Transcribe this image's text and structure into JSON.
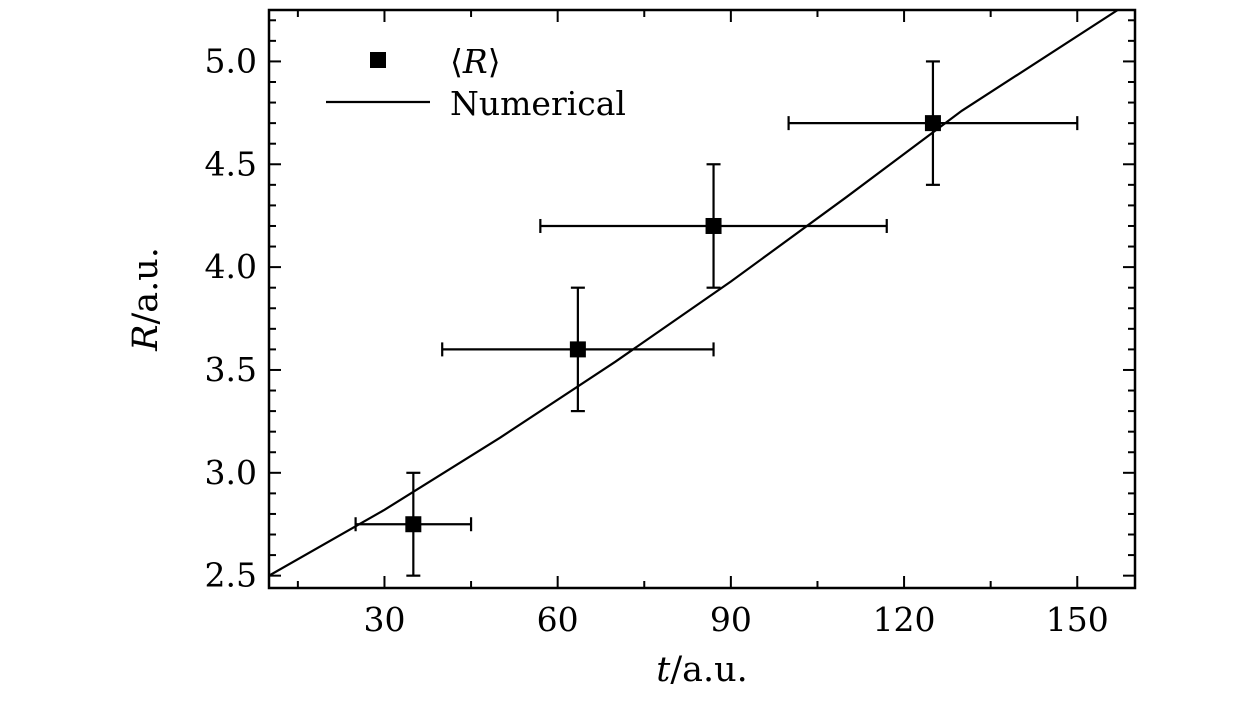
{
  "chart_data": {
    "type": "scatter",
    "title": "",
    "xlabel": {
      "symbol": "t",
      "unit": "/a.u."
    },
    "ylabel": {
      "symbol": "R",
      "unit": "/a.u."
    },
    "xlim": [
      10,
      160
    ],
    "ylim": [
      2.44,
      5.25
    ],
    "x_ticks": [
      30,
      60,
      90,
      120,
      150
    ],
    "x_tick_labels": [
      "30",
      "60",
      "90",
      "120",
      "150"
    ],
    "y_ticks": [
      2.5,
      3.0,
      3.5,
      4.0,
      4.5,
      5.0
    ],
    "y_tick_labels": [
      "2.5",
      "3.0",
      "3.5",
      "4.0",
      "4.5",
      "5.0"
    ],
    "grid": false,
    "legend_position": "top-left",
    "series": [
      {
        "name": "⟨R⟩",
        "kind": "points-with-errorbars",
        "points": [
          {
            "x": 35,
            "y": 2.75,
            "xerr": [
              25,
              45
            ],
            "yerr": [
              2.5,
              3.0
            ]
          },
          {
            "x": 63.5,
            "y": 3.6,
            "xerr": [
              40,
              87
            ],
            "yerr": [
              3.3,
              3.9
            ]
          },
          {
            "x": 87,
            "y": 4.2,
            "xerr": [
              57,
              117
            ],
            "yerr": [
              3.9,
              4.5
            ]
          },
          {
            "x": 125,
            "y": 4.7,
            "xerr": [
              100,
              150
            ],
            "yerr": [
              4.4,
              5.0
            ]
          }
        ]
      },
      {
        "name": "Numerical",
        "kind": "line",
        "points": [
          {
            "x": 10,
            "y": 2.5
          },
          {
            "x": 30,
            "y": 2.82
          },
          {
            "x": 50,
            "y": 3.17
          },
          {
            "x": 70,
            "y": 3.54
          },
          {
            "x": 90,
            "y": 3.93
          },
          {
            "x": 110,
            "y": 4.34
          },
          {
            "x": 130,
            "y": 4.76
          },
          {
            "x": 157,
            "y": 5.25
          }
        ]
      }
    ]
  }
}
